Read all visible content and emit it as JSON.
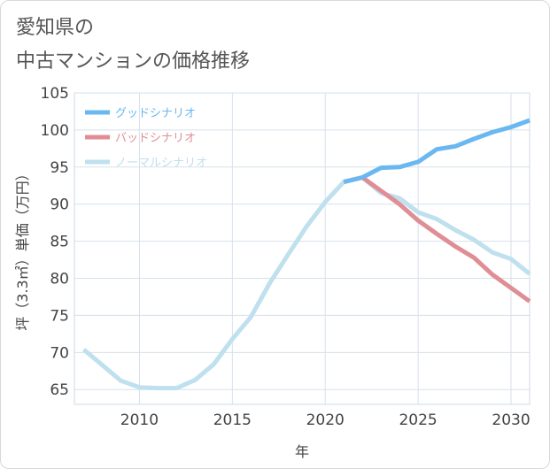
{
  "title_lines": [
    "愛知県の",
    "中古マンションの価格推移"
  ],
  "chart_data": {
    "type": "line",
    "xlabel": "年",
    "ylabel": "坪（3.3㎡）単価（万円）",
    "xlim": [
      2006.5,
      2031
    ],
    "ylim": [
      63,
      105
    ],
    "x_ticks": [
      2010,
      2015,
      2020,
      2025,
      2030
    ],
    "y_ticks": [
      65,
      70,
      75,
      80,
      85,
      90,
      95,
      100,
      105
    ],
    "grid": true,
    "legend_position": "top-left",
    "series": [
      {
        "name": "グッドシナリオ",
        "color": "#6ab8ef",
        "x": [
          2021,
          2022,
          2023,
          2024,
          2025,
          2026,
          2027,
          2028,
          2029,
          2030,
          2031
        ],
        "y": [
          93.0,
          93.6,
          94.9,
          95.0,
          95.7,
          97.4,
          97.8,
          98.8,
          99.7,
          100.4,
          101.3
        ]
      },
      {
        "name": "バッドシナリオ",
        "color": "#e08e95",
        "x": [
          2021,
          2022,
          2023,
          2024,
          2025,
          2026,
          2027,
          2028,
          2029,
          2030,
          2031
        ],
        "y": [
          93.0,
          93.6,
          91.8,
          90.0,
          87.8,
          86.0,
          84.3,
          82.8,
          80.5,
          78.7,
          76.9
        ]
      },
      {
        "name": "ノーマルシナリオ",
        "color": "#bfe0ee",
        "x": [
          2007,
          2008,
          2009,
          2010,
          2011,
          2012,
          2013,
          2014,
          2015,
          2016,
          2017,
          2018,
          2019,
          2020,
          2021,
          2022,
          2023,
          2024,
          2025,
          2026,
          2027,
          2028,
          2029,
          2030,
          2031
        ],
        "y": [
          70.4,
          68.3,
          66.2,
          65.3,
          65.2,
          65.2,
          66.3,
          68.4,
          71.8,
          74.8,
          79.3,
          83.2,
          87.0,
          90.3,
          93.0,
          93.6,
          91.5,
          90.8,
          88.9,
          88.0,
          86.5,
          85.2,
          83.5,
          82.6,
          80.6
        ]
      }
    ]
  }
}
